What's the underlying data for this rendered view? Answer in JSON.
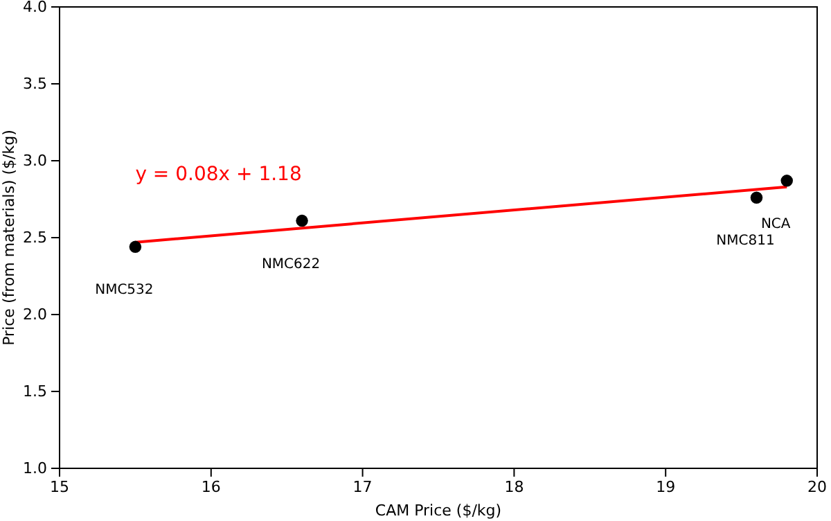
{
  "chart_data": {
    "type": "scatter",
    "xlabel": "CAM Price ($/kg)",
    "ylabel": "Price (from materials) ($/kg)",
    "xlim": [
      15,
      20
    ],
    "xticks": [
      15,
      16,
      17,
      18,
      19,
      20
    ],
    "ylim": [
      1,
      4
    ],
    "yticks": [
      {
        "value": 1,
        "label": "1.0"
      },
      {
        "value": 1.5,
        "label": "1.5"
      },
      {
        "value": 2,
        "label": "2.0"
      },
      {
        "value": 2.5,
        "label": "2.5"
      },
      {
        "value": 3,
        "label": "3.0"
      },
      {
        "value": 3.5,
        "label": "3.5"
      },
      {
        "value": 4,
        "label": "4.0"
      }
    ],
    "grid": false,
    "series": [
      {
        "marker": "circle",
        "color": "#000000",
        "x": [
          15.5,
          16.6,
          19.6,
          19.8
        ],
        "values": [
          2.44,
          2.61,
          2.76,
          2.87
        ]
      },
      {
        "type": "line",
        "marker": "none",
        "color": "#ff0000",
        "x": [
          15.5,
          19.8
        ],
        "values": [
          2.47,
          2.83
        ]
      }
    ],
    "annotations": [
      {
        "text": "NMC532",
        "x": 15.5,
        "y": 2.44
      },
      {
        "text": "NMC622",
        "x": 16.6,
        "y": 2.61
      },
      {
        "text": "NMC811",
        "x": 19.6,
        "y": 2.76
      },
      {
        "text": "NCA",
        "x": 19.8,
        "y": 2.87
      },
      "y = 0.08x + 1.18"
    ]
  }
}
